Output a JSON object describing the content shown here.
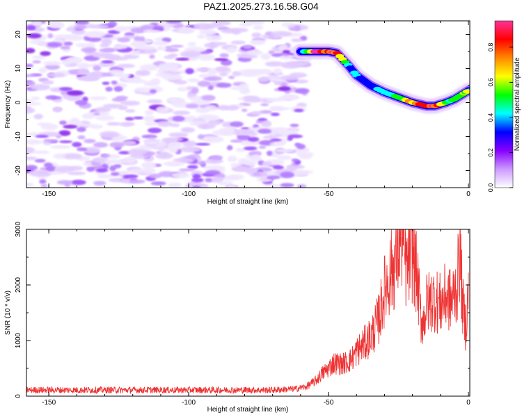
{
  "title": "PAZ1.2025.273.16.58.G04",
  "chart_data": [
    {
      "type": "heatmap",
      "name": "spectrogram",
      "xlabel": "Height of straight line (km)",
      "ylabel": "Frequency (Hz)",
      "xlim": [
        -158,
        0.5
      ],
      "ylim": [
        -25,
        24
      ],
      "xticks": [
        -150,
        -100,
        -50,
        0
      ],
      "xtick_labels": [
        "-150",
        "-100",
        "-50",
        "0"
      ],
      "yticks": [
        -20,
        -10,
        0,
        10,
        20
      ],
      "ytick_labels": [
        "-20",
        "-10",
        "0",
        "10",
        "20"
      ],
      "noise_region_km": [
        -158,
        -60
      ],
      "signal_track": {
        "height_km": [
          -60,
          -55,
          -50,
          -47,
          -43,
          -40,
          -35,
          -30,
          -25,
          -20,
          -15,
          -12,
          -8,
          -5,
          -2,
          0
        ],
        "frequency_hz": [
          15,
          15,
          15,
          14.5,
          11,
          8,
          5,
          3,
          1.5,
          0,
          -1,
          -1,
          0,
          1,
          2.5,
          3.5
        ],
        "normalized_amplitude": [
          0.3,
          0.95,
          0.95,
          0.9,
          0.45,
          0.4,
          0.35,
          0.45,
          0.6,
          0.9,
          0.95,
          0.9,
          0.55,
          0.5,
          0.6,
          0.55
        ]
      },
      "colorbar": {
        "label": "Normalized spectral amplitude",
        "range": [
          0,
          0.95
        ],
        "ticks": [
          0.0,
          0.2,
          0.4,
          0.6,
          0.8
        ],
        "tick_labels": [
          "0.0",
          "0.2",
          "0.4",
          "0.6",
          "0.8"
        ],
        "colors": [
          "#ffffff",
          "#cc99ff",
          "#8800ff",
          "#0000ff",
          "#00ffff",
          "#00ff00",
          "#ffff00",
          "#ff8800",
          "#ff0000",
          "#ff3399"
        ]
      }
    },
    {
      "type": "line",
      "name": "snr",
      "xlabel": "Height of straight line (km)",
      "ylabel": "SNR (10 * v/v)",
      "xlim": [
        -158,
        0.5
      ],
      "ylim": [
        0,
        3000
      ],
      "xticks": [
        -150,
        -100,
        -50,
        0
      ],
      "xtick_labels": [
        "-150",
        "-100",
        "-50",
        "0"
      ],
      "yticks": [
        0,
        1000,
        2000,
        3000
      ],
      "ytick_labels": [
        "0",
        "1000",
        "2000",
        "3000"
      ],
      "color": "#ee3333",
      "series": [
        {
          "name": "SNR",
          "x": [
            -158,
            -150,
            -140,
            -130,
            -120,
            -110,
            -100,
            -90,
            -80,
            -70,
            -62,
            -58,
            -55,
            -52,
            -50,
            -48,
            -45,
            -42,
            -40,
            -38,
            -36,
            -34,
            -32,
            -30,
            -28,
            -26,
            -25,
            -24,
            -23,
            -22,
            -21,
            -20,
            -19,
            -18,
            -17,
            -16,
            -15,
            -14,
            -12,
            -10,
            -8,
            -6,
            -4,
            -3,
            -2,
            -1,
            0
          ],
          "y": [
            110,
            110,
            110,
            110,
            110,
            110,
            110,
            110,
            110,
            110,
            130,
            170,
            260,
            420,
            500,
            600,
            580,
            650,
            800,
            900,
            1000,
            1150,
            1400,
            1900,
            2200,
            2400,
            2700,
            2950,
            2500,
            2300,
            2450,
            2550,
            2350,
            1950,
            1400,
            1350,
            1650,
            1700,
            1750,
            1650,
            1800,
            1700,
            2000,
            2600,
            1600,
            1250,
            1850
          ]
        }
      ]
    }
  ]
}
